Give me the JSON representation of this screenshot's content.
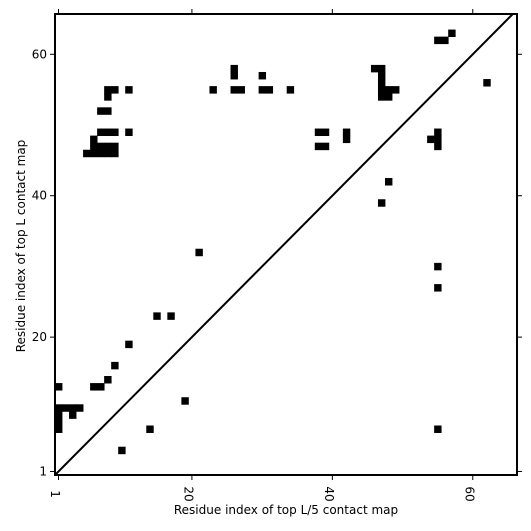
{
  "chart_data": {
    "type": "scatter",
    "marker": "square",
    "xlabel": "Residue index of top L/5 contact map",
    "ylabel": "Residue index of top L contact map",
    "xlim": [
      0.5,
      66.3
    ],
    "ylim": [
      0.5,
      65.7
    ],
    "xticks": [
      1,
      20,
      40,
      60
    ],
    "yticks": [
      1,
      20,
      40,
      60
    ],
    "diagonal": true,
    "grid": false,
    "colors": {
      "points": "#000000",
      "diagonal": "#000000",
      "frame": "#000000",
      "background": "#ffffff"
    },
    "upper_points": [
      [
        5,
        46
      ],
      [
        6,
        46
      ],
      [
        6,
        47
      ],
      [
        6,
        48
      ],
      [
        7,
        46
      ],
      [
        7,
        47
      ],
      [
        7,
        49
      ],
      [
        7,
        52
      ],
      [
        8,
        46
      ],
      [
        8,
        47
      ],
      [
        8,
        49
      ],
      [
        8,
        52
      ],
      [
        8,
        54
      ],
      [
        8,
        55
      ],
      [
        9,
        46
      ],
      [
        9,
        47
      ],
      [
        9,
        49
      ],
      [
        9,
        55
      ],
      [
        11,
        49
      ],
      [
        11,
        55
      ],
      [
        23,
        55
      ],
      [
        26,
        55
      ],
      [
        26,
        57
      ],
      [
        26,
        58
      ],
      [
        27,
        55
      ],
      [
        30,
        55
      ],
      [
        30,
        57
      ],
      [
        31,
        55
      ],
      [
        34,
        55
      ],
      [
        38,
        47
      ],
      [
        38,
        49
      ],
      [
        39,
        47
      ],
      [
        39,
        49
      ],
      [
        42,
        48
      ],
      [
        42,
        49
      ],
      [
        46,
        58
      ],
      [
        47,
        54
      ],
      [
        47,
        55
      ],
      [
        47,
        56
      ],
      [
        47,
        57
      ],
      [
        47,
        58
      ],
      [
        48,
        54
      ],
      [
        48,
        55
      ],
      [
        49,
        55
      ],
      [
        54,
        48
      ],
      [
        55,
        47
      ],
      [
        55,
        48
      ],
      [
        55,
        49
      ],
      [
        55,
        62
      ],
      [
        56,
        62
      ],
      [
        57,
        63
      ],
      [
        62,
        56
      ]
    ],
    "lower_points": [
      [
        1,
        7
      ],
      [
        1,
        8
      ],
      [
        1,
        9
      ],
      [
        1,
        10
      ],
      [
        1,
        13
      ],
      [
        2,
        10
      ],
      [
        3,
        9
      ],
      [
        3,
        10
      ],
      [
        4,
        10
      ],
      [
        6,
        13
      ],
      [
        7,
        13
      ],
      [
        8,
        14
      ],
      [
        9,
        16
      ],
      [
        10,
        4
      ],
      [
        11,
        19
      ],
      [
        14,
        7
      ],
      [
        15,
        23
      ],
      [
        17,
        23
      ],
      [
        19,
        11
      ],
      [
        21,
        32
      ],
      [
        48,
        42
      ],
      [
        47,
        39
      ],
      [
        55,
        30
      ],
      [
        55,
        27
      ],
      [
        55,
        7
      ]
    ]
  }
}
